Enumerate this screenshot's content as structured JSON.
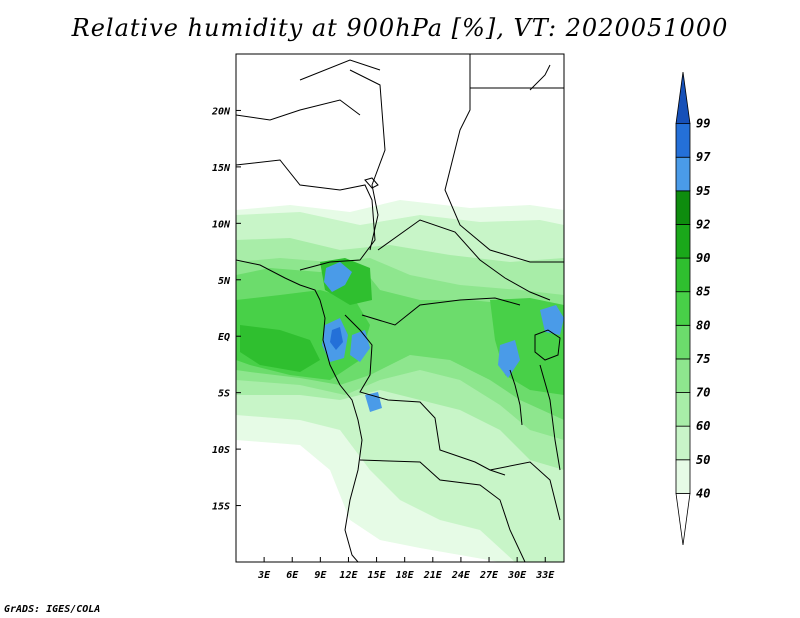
{
  "title": "Relative humidity at 900hPa [%], VT: 2020051000",
  "credit": "GrADS: IGES/COLA",
  "map": {
    "lon_range": [
      0,
      35
    ],
    "lat_range": [
      -20,
      25
    ],
    "lon_ticks": [
      {
        "value": 3,
        "label": "3E"
      },
      {
        "value": 6,
        "label": "6E"
      },
      {
        "value": 9,
        "label": "9E"
      },
      {
        "value": 12,
        "label": "12E"
      },
      {
        "value": 15,
        "label": "15E"
      },
      {
        "value": 18,
        "label": "18E"
      },
      {
        "value": 21,
        "label": "21E"
      },
      {
        "value": 24,
        "label": "24E"
      },
      {
        "value": 27,
        "label": "27E"
      },
      {
        "value": 30,
        "label": "30E"
      },
      {
        "value": 33,
        "label": "33E"
      }
    ],
    "lat_ticks": [
      {
        "value": 20,
        "label": "20N"
      },
      {
        "value": 15,
        "label": "15N"
      },
      {
        "value": 10,
        "label": "10N"
      },
      {
        "value": 5,
        "label": "5N"
      },
      {
        "value": 0,
        "label": "EQ"
      },
      {
        "value": -5,
        "label": "5S"
      },
      {
        "value": -10,
        "label": "10S"
      },
      {
        "value": -15,
        "label": "15S"
      }
    ]
  },
  "colorbar": {
    "levels": [
      "40",
      "50",
      "60",
      "70",
      "75",
      "80",
      "85",
      "90",
      "92",
      "95",
      "97",
      "99"
    ],
    "colors": [
      "#ffffff",
      "#e6fbe6",
      "#c8f5c8",
      "#a8eda8",
      "#8ee68e",
      "#6cdc6c",
      "#48d048",
      "#2fbf2f",
      "#1aa81a",
      "#0e8c0e",
      "#4a9be8",
      "#2470d8",
      "#1650b8"
    ]
  }
}
